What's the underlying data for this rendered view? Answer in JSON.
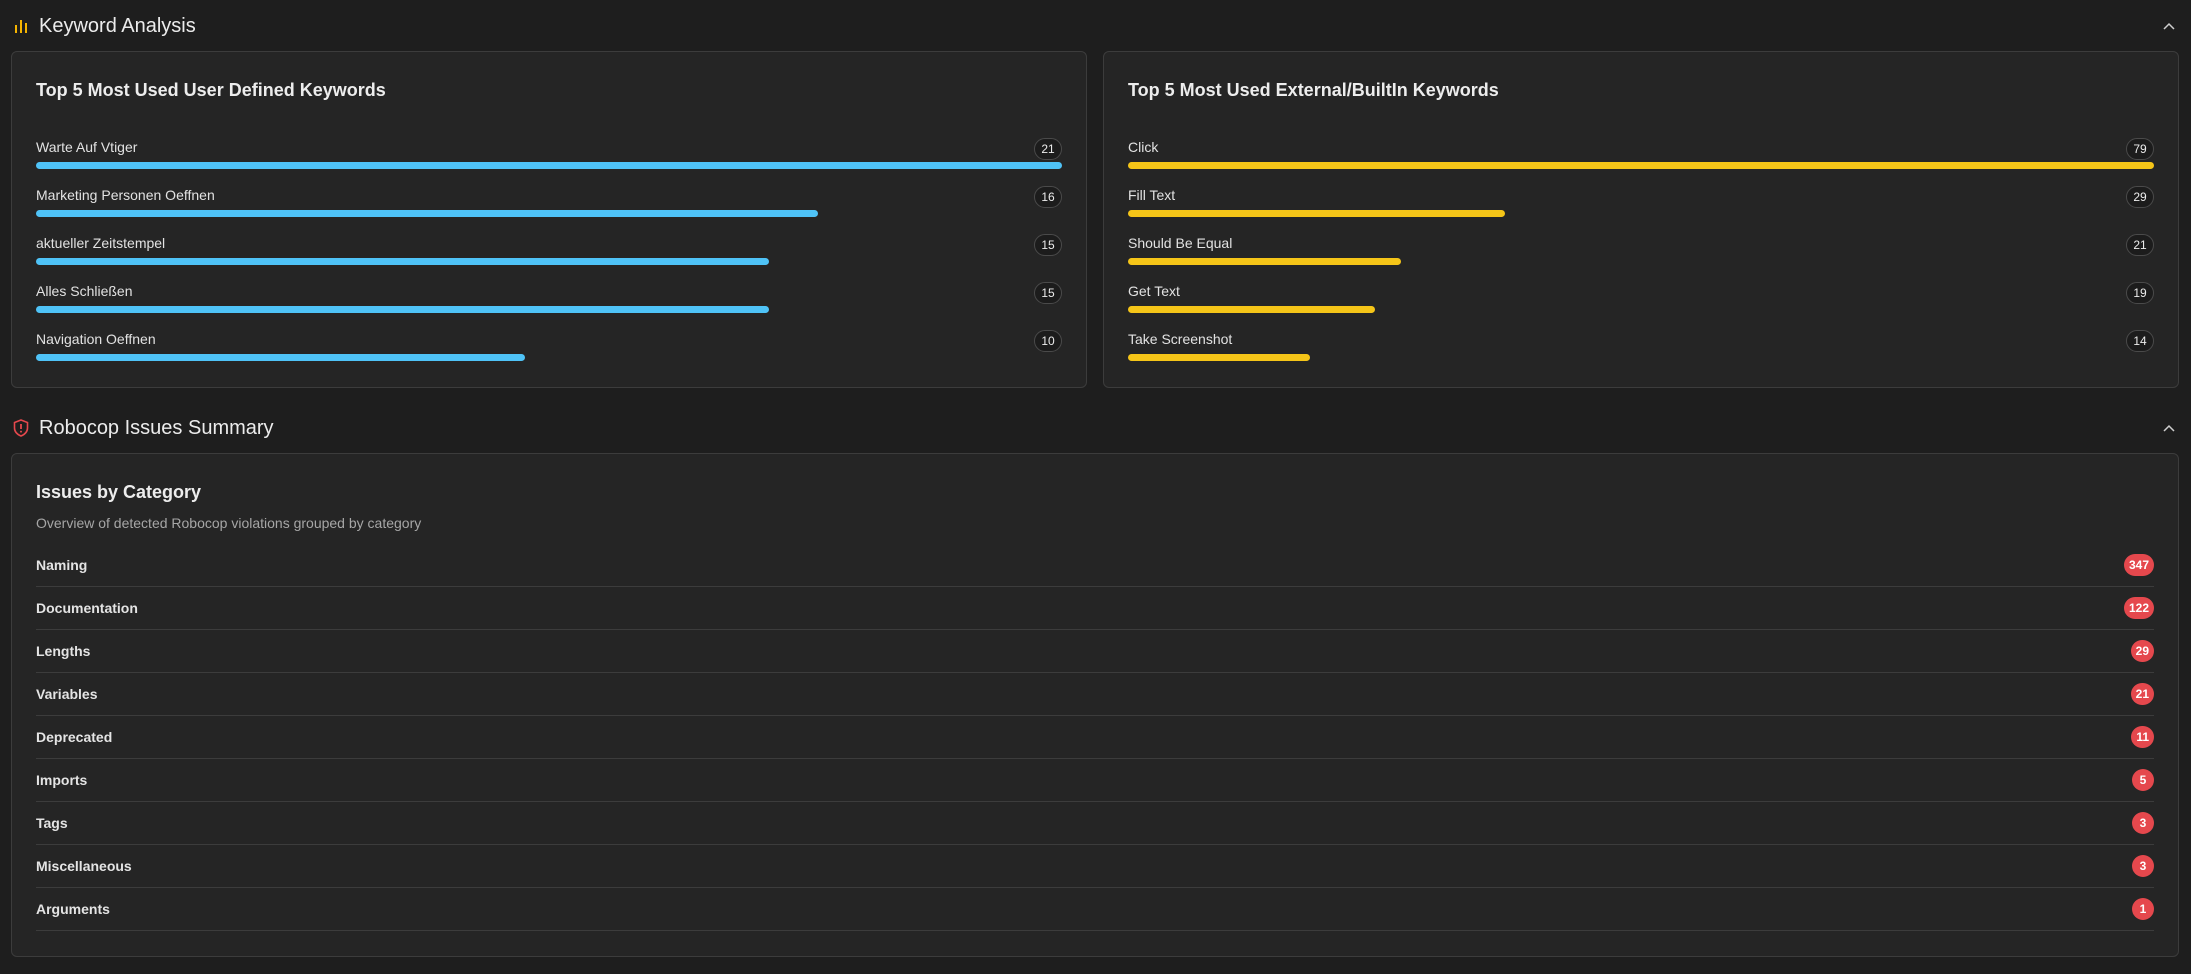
{
  "keyword_analysis": {
    "title": "Keyword Analysis",
    "icon": "bar-chart-icon",
    "accent": "#f5b400",
    "user_defined": {
      "title": "Top 5 Most Used User Defined Keywords",
      "color": "#4fc3f7",
      "max": 21,
      "items": [
        {
          "label": "Warte Auf Vtiger",
          "count": 21
        },
        {
          "label": "Marketing Personen Oeffnen",
          "count": 16
        },
        {
          "label": "aktueller Zeitstempel",
          "count": 15
        },
        {
          "label": "Alles Schließen",
          "count": 15
        },
        {
          "label": "Navigation Oeffnen",
          "count": 10
        }
      ]
    },
    "external": {
      "title": "Top 5 Most Used External/BuiltIn Keywords",
      "color": "#f5c518",
      "max": 79,
      "items": [
        {
          "label": "Click",
          "count": 79
        },
        {
          "label": "Fill Text",
          "count": 29
        },
        {
          "label": "Should Be Equal",
          "count": 21
        },
        {
          "label": "Get Text",
          "count": 19
        },
        {
          "label": "Take Screenshot",
          "count": 14
        }
      ]
    }
  },
  "robocop": {
    "title": "Robocop Issues Summary",
    "icon": "shield-alert-icon",
    "accent": "#e5484d",
    "card_title": "Issues by Category",
    "subtitle": "Overview of detected Robocop violations grouped by category",
    "categories": [
      {
        "label": "Naming",
        "count": "347"
      },
      {
        "label": "Documentation",
        "count": "122"
      },
      {
        "label": "Lengths",
        "count": "29"
      },
      {
        "label": "Variables",
        "count": "21"
      },
      {
        "label": "Deprecated",
        "count": "11"
      },
      {
        "label": "Imports",
        "count": "5"
      },
      {
        "label": "Tags",
        "count": "3"
      },
      {
        "label": "Miscellaneous",
        "count": "3"
      },
      {
        "label": "Arguments",
        "count": "1"
      }
    ]
  }
}
